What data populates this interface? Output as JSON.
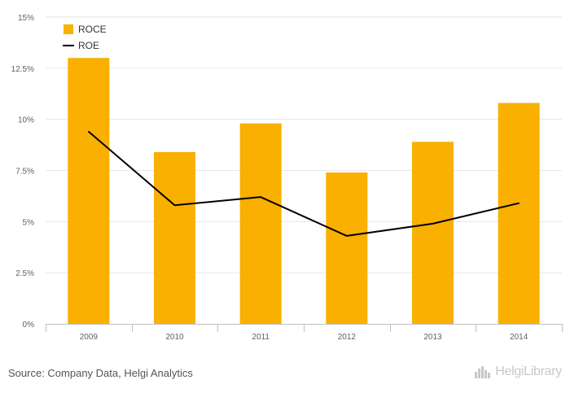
{
  "chart_data": {
    "type": "bar",
    "categories": [
      "2009",
      "2010",
      "2011",
      "2012",
      "2013",
      "2014"
    ],
    "series": [
      {
        "name": "ROCE",
        "kind": "bar",
        "color": "#f9b000",
        "values": [
          13.0,
          8.4,
          9.8,
          7.4,
          8.9,
          10.8
        ]
      },
      {
        "name": "ROE",
        "kind": "line",
        "color": "#000000",
        "values": [
          9.4,
          5.8,
          6.2,
          4.3,
          4.9,
          5.9
        ]
      }
    ],
    "yticks": [
      "0%",
      "2.5%",
      "5%",
      "7.5%",
      "10%",
      "12.5%",
      "15%"
    ],
    "ylim": [
      0,
      15
    ],
    "grid": true,
    "legend_position": "top-left"
  },
  "footer": {
    "source": "Source: Company Data, Helgi Analytics",
    "brand": "HelgiLibrary"
  }
}
